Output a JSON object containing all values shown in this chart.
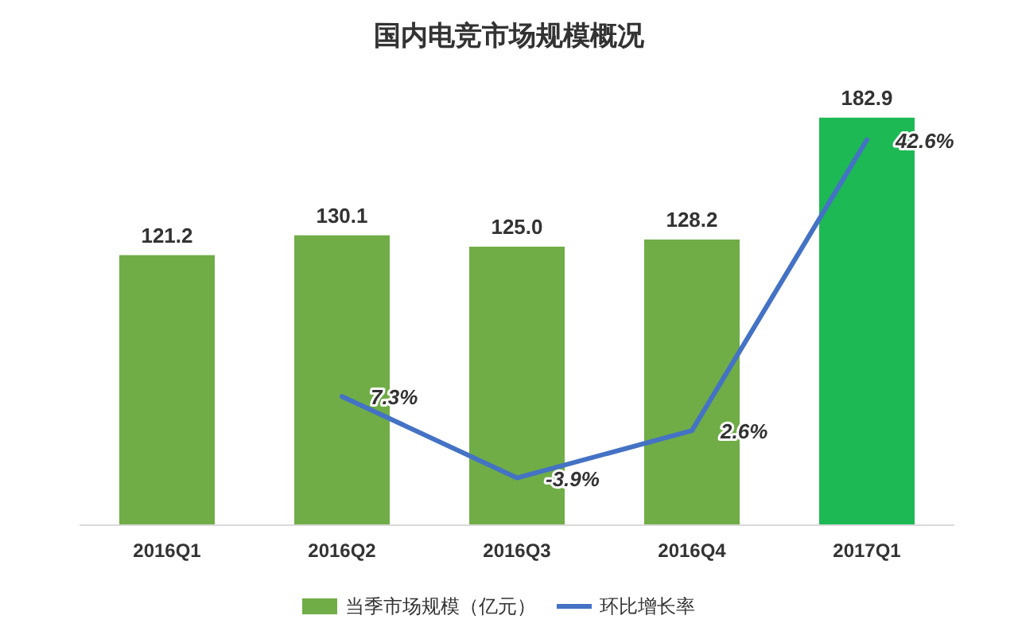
{
  "chart_data": {
    "type": "bar",
    "title": "国内电竞市场规模概况",
    "categories": [
      "2016Q1",
      "2016Q2",
      "2016Q3",
      "2016Q4",
      "2017Q1"
    ],
    "series": [
      {
        "name": "当季市场规模（亿元）",
        "color": "#70ad47",
        "colors": [
          "#70ad47",
          "#70ad47",
          "#70ad47",
          "#70ad47",
          "#1db954"
        ],
        "values": [
          121.2,
          130.1,
          125.0,
          128.2,
          182.9
        ],
        "value_labels": [
          "121.2",
          "130.1",
          "125.0",
          "128.2",
          "182.9"
        ]
      },
      {
        "name": "环比增长率",
        "type": "line",
        "axis": "y2",
        "color": "#4472c4",
        "values": [
          null,
          7.3,
          -3.9,
          2.6,
          42.6
        ],
        "value_labels": [
          null,
          "7.3%",
          "-3.9%",
          "2.6%",
          "42.6%"
        ]
      }
    ],
    "legend": "bottom",
    "grid": false,
    "marker": "none",
    "line_style": "solid"
  }
}
